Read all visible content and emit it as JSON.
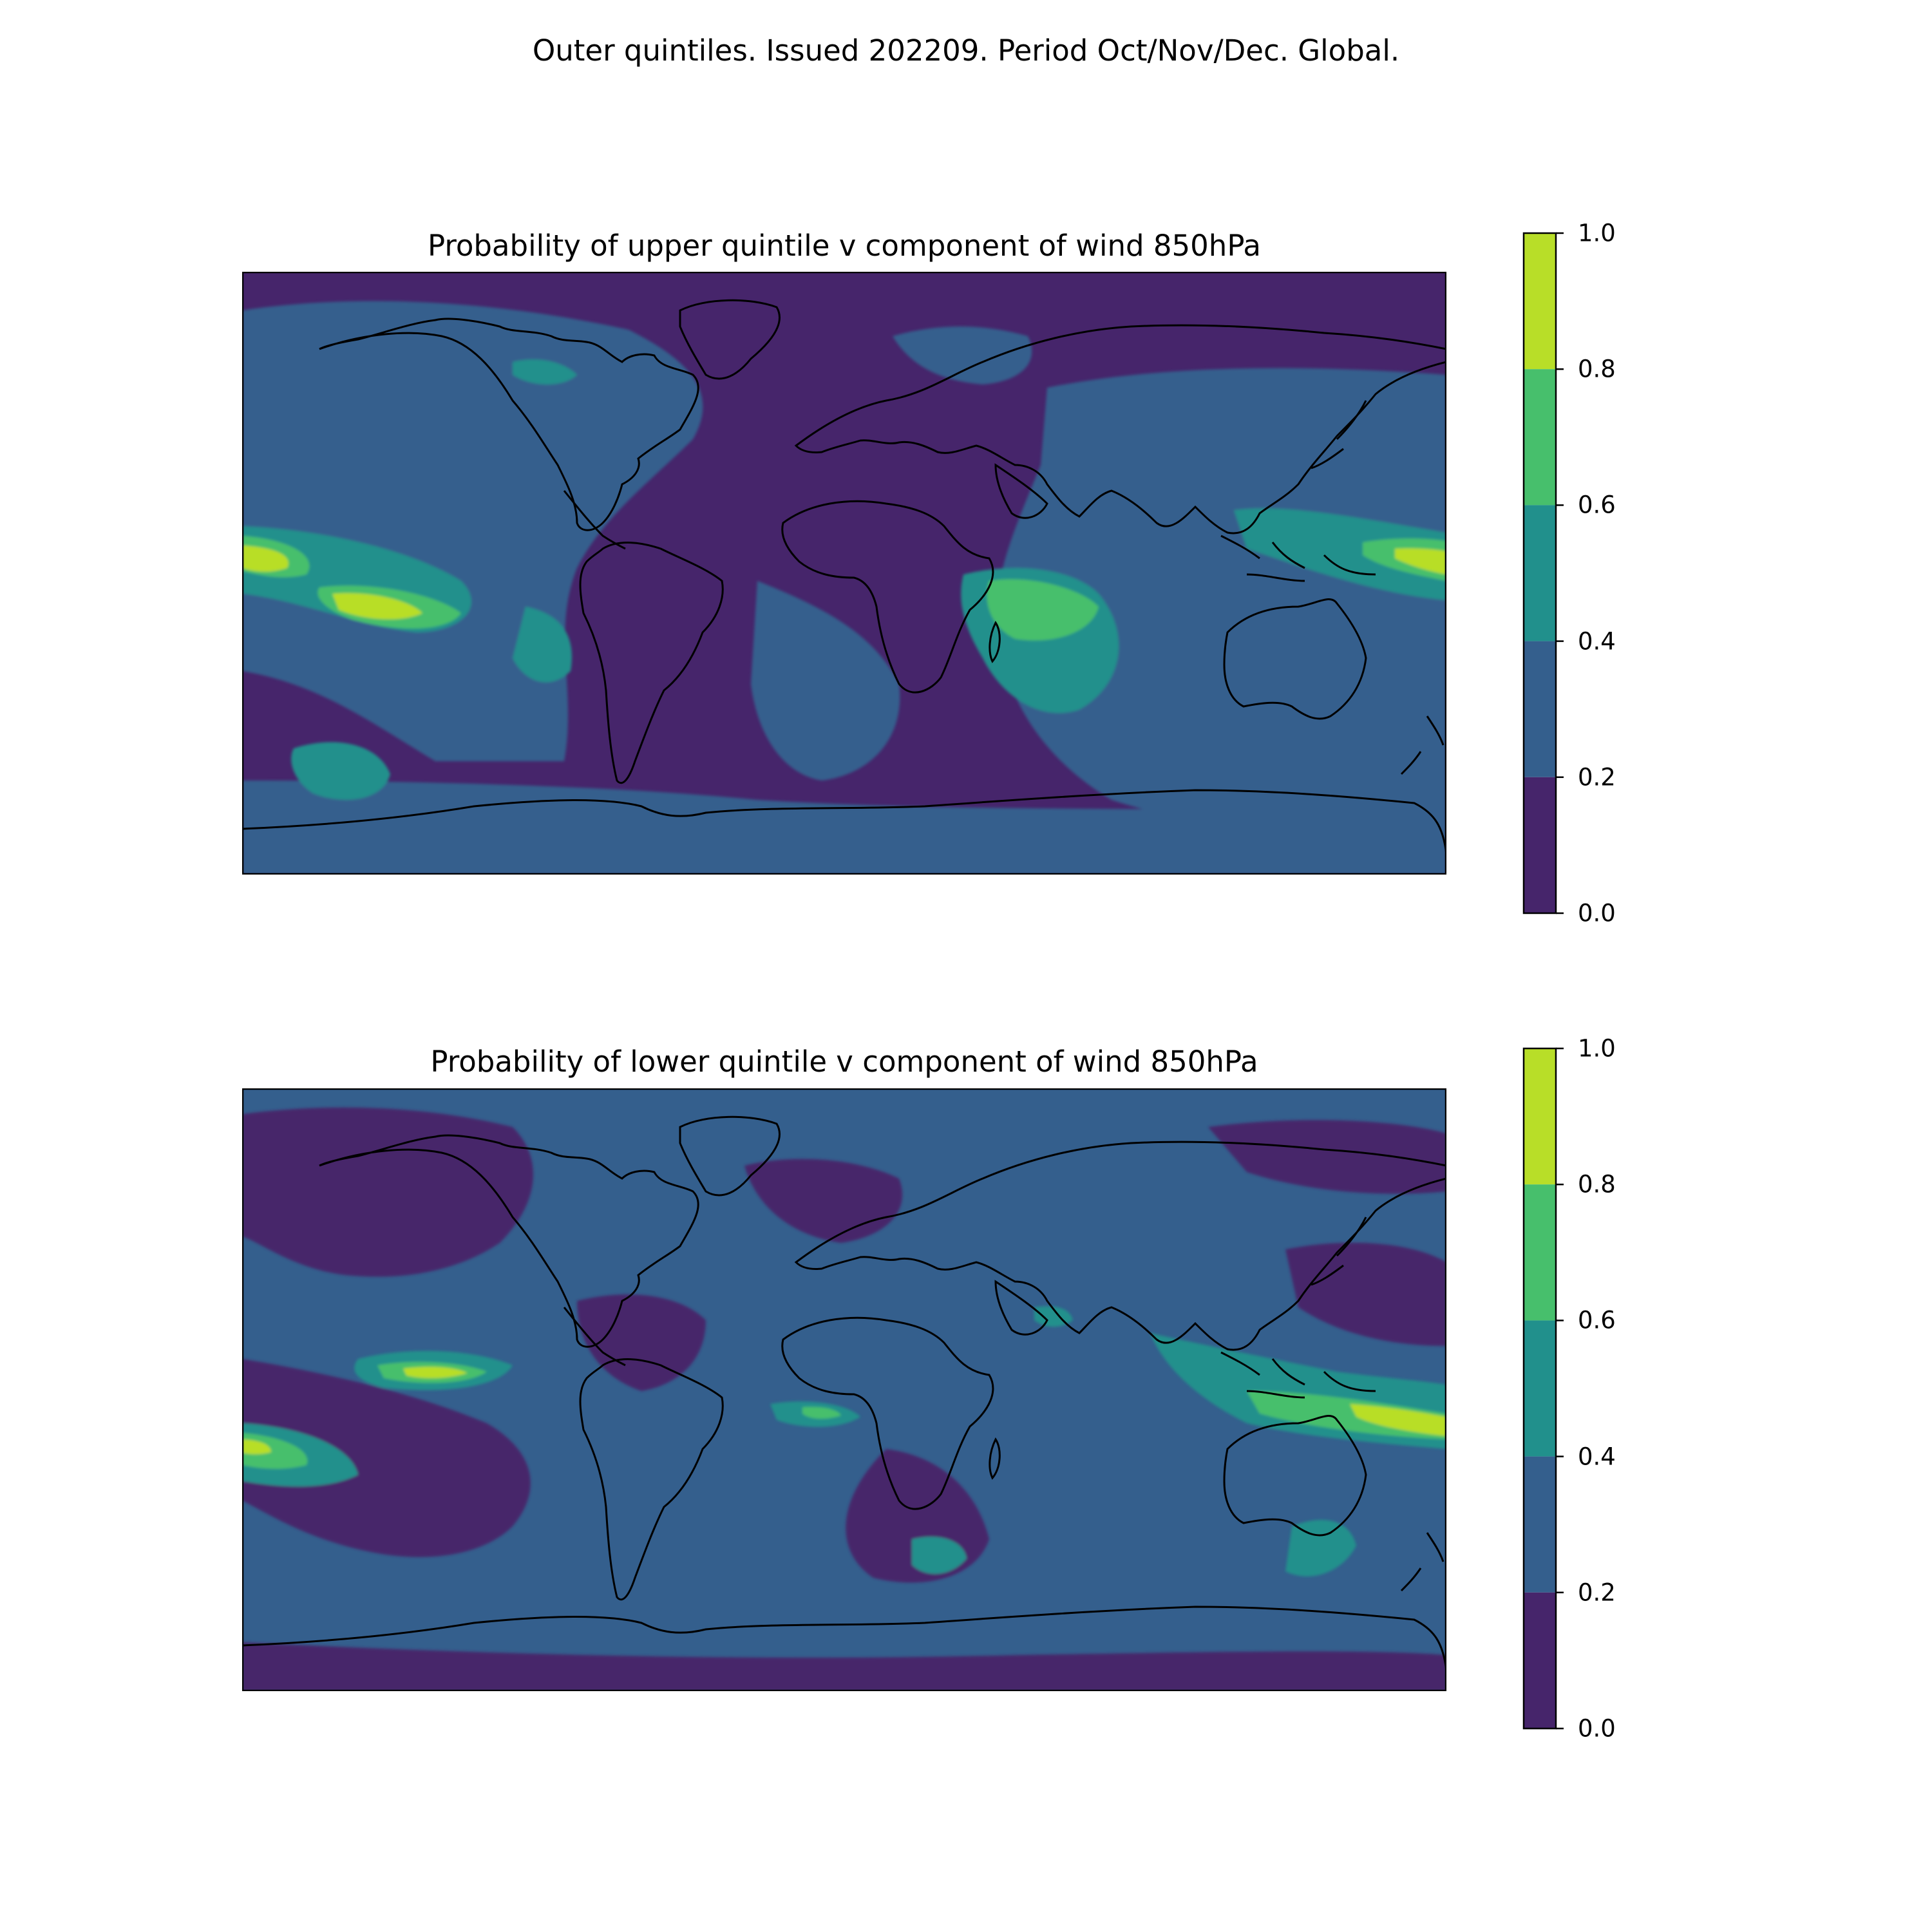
{
  "suptitle": "Outer quintiles. Issued 202209. Period Oct/Nov/Dec. Global.",
  "colormap": {
    "levels": [
      0.0,
      0.2,
      0.4,
      0.6,
      0.8,
      1.0
    ],
    "colors": [
      "#46256b",
      "#345f8d",
      "#21908c",
      "#47bf6c",
      "#b8de28"
    ],
    "coastline_color": "#000000"
  },
  "panels": [
    {
      "title": "Probability of upper quintile v component of wind 850hPa",
      "colorbar": {
        "ticks": [
          "1.0",
          "0.8",
          "0.6",
          "0.4",
          "0.2",
          "0.0"
        ]
      },
      "highlights": [
        "central tropical Pacific band",
        "southwest Indian Ocean",
        "western tropical Pacific"
      ]
    },
    {
      "title": "Probability of lower quintile v component of wind 850hPa",
      "colorbar": {
        "ticks": [
          "1.0",
          "0.8",
          "0.6",
          "0.4",
          "0.2",
          "0.0"
        ]
      },
      "highlights": [
        "eastern Pacific off Mexico",
        "Indonesia / northern Australia",
        "South Pacific dateline"
      ]
    }
  ]
}
